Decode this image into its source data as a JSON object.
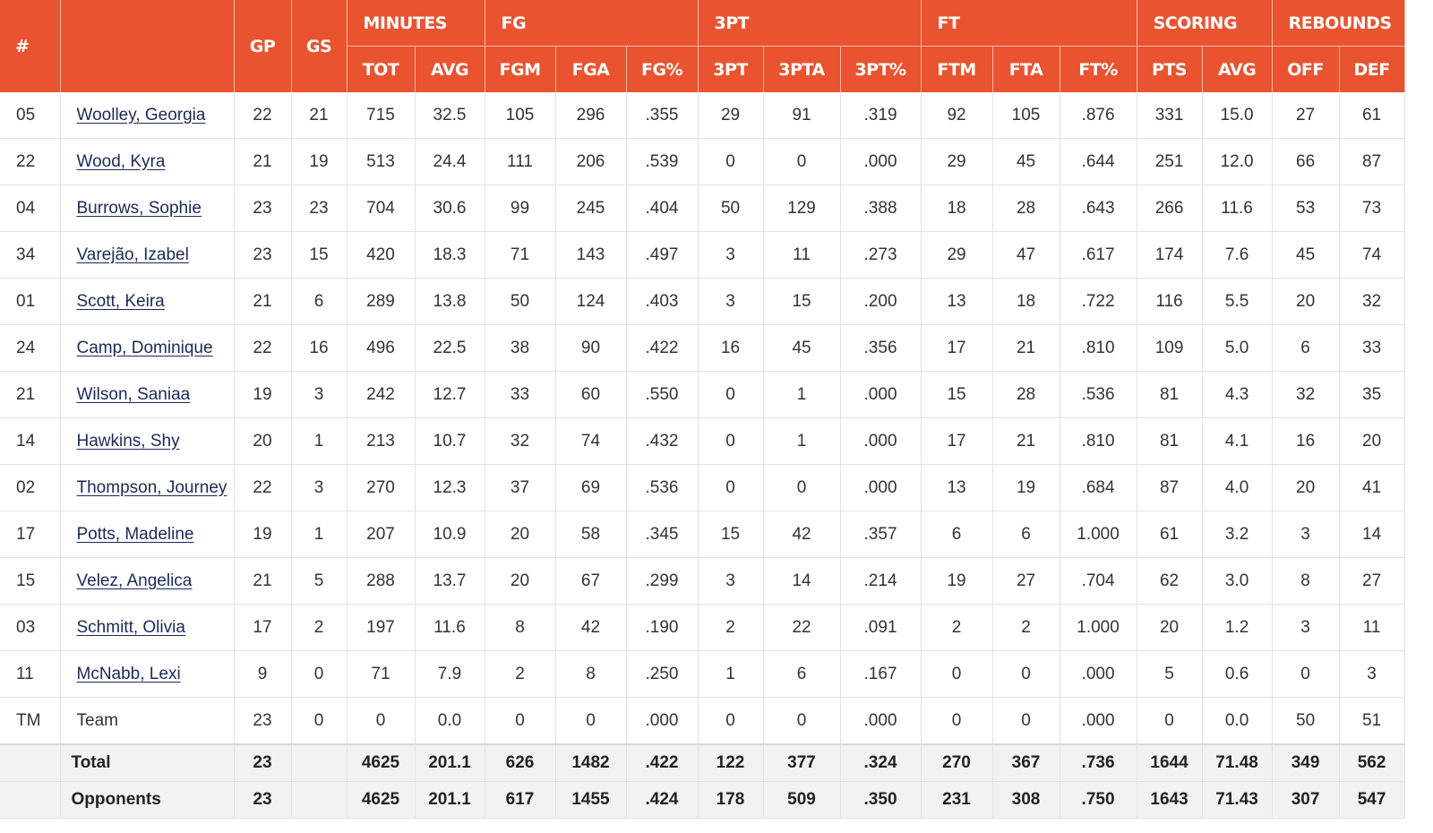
{
  "header": {
    "groups": {
      "num": "#",
      "gp": "GP",
      "gs": "GS",
      "minutes": "MINUTES",
      "fg": "FG",
      "threept": "3PT",
      "ft": "FT",
      "scoring": "SCORING",
      "rebounds": "REBOUNDS"
    },
    "columns": [
      "TOT",
      "AVG",
      "FGM",
      "FGA",
      "FG%",
      "3PT",
      "3PTA",
      "3PT%",
      "FTM",
      "FTA",
      "FT%",
      "PTS",
      "AVG",
      "OFF",
      "DEF"
    ]
  },
  "colors": {
    "header_bg": "#e95330",
    "link": "#1a2a5a",
    "footer_bg": "#f2f2f2"
  },
  "rows": [
    {
      "num": "05",
      "name": "Woolley, Georgia",
      "link": true,
      "gp": "22",
      "gs": "21",
      "tot": "715",
      "mavg": "32.5",
      "fgm": "105",
      "fga": "296",
      "fgp": ".355",
      "tp": "29",
      "tpa": "91",
      "tpp": ".319",
      "ftm": "92",
      "fta": "105",
      "ftp": ".876",
      "pts": "331",
      "savg": "15.0",
      "off": "27",
      "def": "61"
    },
    {
      "num": "22",
      "name": "Wood, Kyra",
      "link": true,
      "gp": "21",
      "gs": "19",
      "tot": "513",
      "mavg": "24.4",
      "fgm": "111",
      "fga": "206",
      "fgp": ".539",
      "tp": "0",
      "tpa": "0",
      "tpp": ".000",
      "ftm": "29",
      "fta": "45",
      "ftp": ".644",
      "pts": "251",
      "savg": "12.0",
      "off": "66",
      "def": "87"
    },
    {
      "num": "04",
      "name": "Burrows, Sophie",
      "link": true,
      "gp": "23",
      "gs": "23",
      "tot": "704",
      "mavg": "30.6",
      "fgm": "99",
      "fga": "245",
      "fgp": ".404",
      "tp": "50",
      "tpa": "129",
      "tpp": ".388",
      "ftm": "18",
      "fta": "28",
      "ftp": ".643",
      "pts": "266",
      "savg": "11.6",
      "off": "53",
      "def": "73"
    },
    {
      "num": "34",
      "name": "Varejão, Izabel",
      "link": true,
      "gp": "23",
      "gs": "15",
      "tot": "420",
      "mavg": "18.3",
      "fgm": "71",
      "fga": "143",
      "fgp": ".497",
      "tp": "3",
      "tpa": "11",
      "tpp": ".273",
      "ftm": "29",
      "fta": "47",
      "ftp": ".617",
      "pts": "174",
      "savg": "7.6",
      "off": "45",
      "def": "74"
    },
    {
      "num": "01",
      "name": "Scott, Keira",
      "link": true,
      "gp": "21",
      "gs": "6",
      "tot": "289",
      "mavg": "13.8",
      "fgm": "50",
      "fga": "124",
      "fgp": ".403",
      "tp": "3",
      "tpa": "15",
      "tpp": ".200",
      "ftm": "13",
      "fta": "18",
      "ftp": ".722",
      "pts": "116",
      "savg": "5.5",
      "off": "20",
      "def": "32"
    },
    {
      "num": "24",
      "name": "Camp, Dominique",
      "link": true,
      "gp": "22",
      "gs": "16",
      "tot": "496",
      "mavg": "22.5",
      "fgm": "38",
      "fga": "90",
      "fgp": ".422",
      "tp": "16",
      "tpa": "45",
      "tpp": ".356",
      "ftm": "17",
      "fta": "21",
      "ftp": ".810",
      "pts": "109",
      "savg": "5.0",
      "off": "6",
      "def": "33"
    },
    {
      "num": "21",
      "name": "Wilson, Saniaa",
      "link": true,
      "gp": "19",
      "gs": "3",
      "tot": "242",
      "mavg": "12.7",
      "fgm": "33",
      "fga": "60",
      "fgp": ".550",
      "tp": "0",
      "tpa": "1",
      "tpp": ".000",
      "ftm": "15",
      "fta": "28",
      "ftp": ".536",
      "pts": "81",
      "savg": "4.3",
      "off": "32",
      "def": "35"
    },
    {
      "num": "14",
      "name": "Hawkins, Shy",
      "link": true,
      "gp": "20",
      "gs": "1",
      "tot": "213",
      "mavg": "10.7",
      "fgm": "32",
      "fga": "74",
      "fgp": ".432",
      "tp": "0",
      "tpa": "1",
      "tpp": ".000",
      "ftm": "17",
      "fta": "21",
      "ftp": ".810",
      "pts": "81",
      "savg": "4.1",
      "off": "16",
      "def": "20"
    },
    {
      "num": "02",
      "name": "Thompson, Journey",
      "link": true,
      "gp": "22",
      "gs": "3",
      "tot": "270",
      "mavg": "12.3",
      "fgm": "37",
      "fga": "69",
      "fgp": ".536",
      "tp": "0",
      "tpa": "0",
      "tpp": ".000",
      "ftm": "13",
      "fta": "19",
      "ftp": ".684",
      "pts": "87",
      "savg": "4.0",
      "off": "20",
      "def": "41"
    },
    {
      "num": "17",
      "name": "Potts, Madeline",
      "link": true,
      "gp": "19",
      "gs": "1",
      "tot": "207",
      "mavg": "10.9",
      "fgm": "20",
      "fga": "58",
      "fgp": ".345",
      "tp": "15",
      "tpa": "42",
      "tpp": ".357",
      "ftm": "6",
      "fta": "6",
      "ftp": "1.000",
      "pts": "61",
      "savg": "3.2",
      "off": "3",
      "def": "14"
    },
    {
      "num": "15",
      "name": "Velez, Angelica",
      "link": true,
      "gp": "21",
      "gs": "5",
      "tot": "288",
      "mavg": "13.7",
      "fgm": "20",
      "fga": "67",
      "fgp": ".299",
      "tp": "3",
      "tpa": "14",
      "tpp": ".214",
      "ftm": "19",
      "fta": "27",
      "ftp": ".704",
      "pts": "62",
      "savg": "3.0",
      "off": "8",
      "def": "27"
    },
    {
      "num": "03",
      "name": "Schmitt, Olivia",
      "link": true,
      "gp": "17",
      "gs": "2",
      "tot": "197",
      "mavg": "11.6",
      "fgm": "8",
      "fga": "42",
      "fgp": ".190",
      "tp": "2",
      "tpa": "22",
      "tpp": ".091",
      "ftm": "2",
      "fta": "2",
      "ftp": "1.000",
      "pts": "20",
      "savg": "1.2",
      "off": "3",
      "def": "11"
    },
    {
      "num": "11",
      "name": "McNabb, Lexi",
      "link": true,
      "gp": "9",
      "gs": "0",
      "tot": "71",
      "mavg": "7.9",
      "fgm": "2",
      "fga": "8",
      "fgp": ".250",
      "tp": "1",
      "tpa": "6",
      "tpp": ".167",
      "ftm": "0",
      "fta": "0",
      "ftp": ".000",
      "pts": "5",
      "savg": "0.6",
      "off": "0",
      "def": "3"
    },
    {
      "num": "TM",
      "name": "Team",
      "link": false,
      "gp": "23",
      "gs": "0",
      "tot": "0",
      "mavg": "0.0",
      "fgm": "0",
      "fga": "0",
      "fgp": ".000",
      "tp": "0",
      "tpa": "0",
      "tpp": ".000",
      "ftm": "0",
      "fta": "0",
      "ftp": ".000",
      "pts": "0",
      "savg": "0.0",
      "off": "50",
      "def": "51"
    }
  ],
  "totals": [
    {
      "label": "Total",
      "gp": "23",
      "gs": "",
      "tot": "4625",
      "mavg": "201.1",
      "fgm": "626",
      "fga": "1482",
      "fgp": ".422",
      "tp": "122",
      "tpa": "377",
      "tpp": ".324",
      "ftm": "270",
      "fta": "367",
      "ftp": ".736",
      "pts": "1644",
      "savg": "71.48",
      "off": "349",
      "def": "562"
    },
    {
      "label": "Opponents",
      "gp": "23",
      "gs": "",
      "tot": "4625",
      "mavg": "201.1",
      "fgm": "617",
      "fga": "1455",
      "fgp": ".424",
      "tp": "178",
      "tpa": "509",
      "tpp": ".350",
      "ftm": "231",
      "fta": "308",
      "ftp": ".750",
      "pts": "1643",
      "savg": "71.43",
      "off": "307",
      "def": "547"
    }
  ]
}
